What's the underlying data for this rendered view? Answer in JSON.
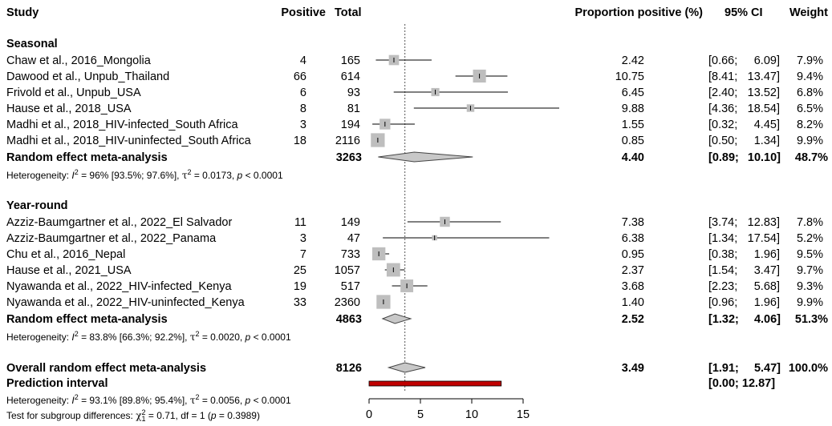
{
  "header": {
    "study": "Study",
    "positive": "Positive",
    "total": "Total",
    "proportion": "Proportion positive (%)",
    "ci": "95% CI",
    "weight": "Weight"
  },
  "groups": [
    {
      "title": "Seasonal",
      "studies": [
        {
          "name": "Chaw et al., 2016_Mongolia",
          "positive": "4",
          "total": "165",
          "prop": "2.42",
          "ci": "[0.66; 6.09]",
          "weight": "7.9%"
        },
        {
          "name": "Dawood et al., Unpub_Thailand",
          "positive": "66",
          "total": "614",
          "prop": "10.75",
          "ci": "[8.41; 13.47]",
          "weight": "9.4%"
        },
        {
          "name": "Frivold et al., Unpub_USA",
          "positive": "6",
          "total": "93",
          "prop": "6.45",
          "ci": "[2.40; 13.52]",
          "weight": "6.8%"
        },
        {
          "name": "Hause et al., 2018_USA",
          "positive": "8",
          "total": "81",
          "prop": "9.88",
          "ci": "[4.36; 18.54]",
          "weight": "6.5%"
        },
        {
          "name": "Madhi et al., 2018_HIV-infected_South Africa",
          "positive": "3",
          "total": "194",
          "prop": "1.55",
          "ci": "[0.32; 4.45]",
          "weight": "8.2%"
        },
        {
          "name": "Madhi et al., 2018_HIV-uninfected_South Africa",
          "positive": "18",
          "total": "2116",
          "prop": "0.85",
          "ci": "[0.50; 1.34]",
          "weight": "9.9%"
        }
      ],
      "summary": {
        "label": "Random effect meta-analysis",
        "total": "3263",
        "prop": "4.40",
        "ci": "[0.89; 10.10]",
        "weight": "48.7%"
      },
      "heterogeneity": {
        "prefix": "Heterogeneity: ",
        "i2": " = 96% [93.5%; 97.6%], ",
        "tau2": " = 0.0173, ",
        "p": " < 0.0001"
      }
    },
    {
      "title": "Year-round",
      "studies": [
        {
          "name": "Azziz-Baumgartner et al., 2022_El Salvador",
          "positive": "11",
          "total": "149",
          "prop": "7.38",
          "ci": "[3.74; 12.83]",
          "weight": "7.8%"
        },
        {
          "name": "Azziz-Baumgartner et al., 2022_Panama",
          "positive": "3",
          "total": "47",
          "prop": "6.38",
          "ci": "[1.34; 17.54]",
          "weight": "5.2%"
        },
        {
          "name": "Chu et al., 2016_Nepal",
          "positive": "7",
          "total": "733",
          "prop": "0.95",
          "ci": "[0.38; 1.96]",
          "weight": "9.5%"
        },
        {
          "name": "Hause et al., 2021_USA",
          "positive": "25",
          "total": "1057",
          "prop": "2.37",
          "ci": "[1.54; 3.47]",
          "weight": "9.7%"
        },
        {
          "name": "Nyawanda et al., 2022_HIV-infected_Kenya",
          "positive": "19",
          "total": "517",
          "prop": "3.68",
          "ci": "[2.23; 5.68]",
          "weight": "9.3%"
        },
        {
          "name": "Nyawanda et al., 2022_HIV-uninfected_Kenya",
          "positive": "33",
          "total": "2360",
          "prop": "1.40",
          "ci": "[0.96; 1.96]",
          "weight": "9.9%"
        }
      ],
      "summary": {
        "label": "Random effect meta-analysis",
        "total": "4863",
        "prop": "2.52",
        "ci": "[1.32; 4.06]",
        "weight": "51.3%"
      },
      "heterogeneity": {
        "prefix": "Heterogeneity: ",
        "i2": " = 83.8% [66.3%; 92.2%], ",
        "tau2": " = 0.0020, ",
        "p": " < 0.0001"
      }
    }
  ],
  "overall": {
    "label": "Overall random effect meta-analysis",
    "total": "8126",
    "prop": "3.49",
    "ci": "[1.91; 5.47]",
    "weight": "100.0%",
    "prediction_label": "Prediction interval",
    "prediction_ci": "[0.00; 12.87]",
    "heterogeneity": {
      "prefix": "Heterogeneity: ",
      "i2": " = 93.1% [89.8%; 95.4%], ",
      "tau2": " = 0.0056, ",
      "p": " < 0.0001"
    },
    "subgroup_test": {
      "prefix": "Test for subgroup differences: ",
      "chi2": " = 0.71, df = 1 (",
      "p": " = 0.3989)"
    }
  },
  "colors": {
    "square": "#bebebe",
    "diamond": "#c8c8c8",
    "prediction": "#c00000",
    "reference_line": "#555555"
  },
  "chart_data": {
    "type": "forest",
    "xlim": [
      0,
      15
    ],
    "x_ticks": [
      0,
      5,
      10,
      15
    ],
    "reference_value": 3.49,
    "studies": [
      {
        "label": "Chaw et al., 2016_Mongolia",
        "est": 2.42,
        "lo": 0.66,
        "hi": 6.09,
        "weight": 7.9
      },
      {
        "label": "Dawood et al., Unpub_Thailand",
        "est": 10.75,
        "lo": 8.41,
        "hi": 13.47,
        "weight": 9.4
      },
      {
        "label": "Frivold et al., Unpub_USA",
        "est": 6.45,
        "lo": 2.4,
        "hi": 13.52,
        "weight": 6.8
      },
      {
        "label": "Hause et al., 2018_USA",
        "est": 9.88,
        "lo": 4.36,
        "hi": 18.54,
        "weight": 6.5
      },
      {
        "label": "Madhi et al., 2018_HIV-infected_South Africa",
        "est": 1.55,
        "lo": 0.32,
        "hi": 4.45,
        "weight": 8.2
      },
      {
        "label": "Madhi et al., 2018_HIV-uninfected_South Africa",
        "est": 0.85,
        "lo": 0.5,
        "hi": 1.34,
        "weight": 9.9
      },
      {
        "label": "Random effect meta-analysis (Seasonal)",
        "est": 4.4,
        "lo": 0.89,
        "hi": 10.1,
        "summary": true
      },
      {
        "label": "Azziz-Baumgartner et al., 2022_El Salvador",
        "est": 7.38,
        "lo": 3.74,
        "hi": 12.83,
        "weight": 7.8
      },
      {
        "label": "Azziz-Baumgartner et al., 2022_Panama",
        "est": 6.38,
        "lo": 1.34,
        "hi": 17.54,
        "weight": 5.2
      },
      {
        "label": "Chu et al., 2016_Nepal",
        "est": 0.95,
        "lo": 0.38,
        "hi": 1.96,
        "weight": 9.5
      },
      {
        "label": "Hause et al., 2021_USA",
        "est": 2.37,
        "lo": 1.54,
        "hi": 3.47,
        "weight": 9.7
      },
      {
        "label": "Nyawanda et al., 2022_HIV-infected_Kenya",
        "est": 3.68,
        "lo": 2.23,
        "hi": 5.68,
        "weight": 9.3
      },
      {
        "label": "Nyawanda et al., 2022_HIV-uninfected_Kenya",
        "est": 1.4,
        "lo": 0.96,
        "hi": 1.96,
        "weight": 9.9
      },
      {
        "label": "Random effect meta-analysis (Year-round)",
        "est": 2.52,
        "lo": 1.32,
        "hi": 4.06,
        "summary": true
      },
      {
        "label": "Overall random effect meta-analysis",
        "est": 3.49,
        "lo": 1.91,
        "hi": 5.47,
        "summary": true
      },
      {
        "label": "Prediction interval",
        "lo": 0.0,
        "hi": 12.87,
        "prediction": true
      }
    ]
  }
}
